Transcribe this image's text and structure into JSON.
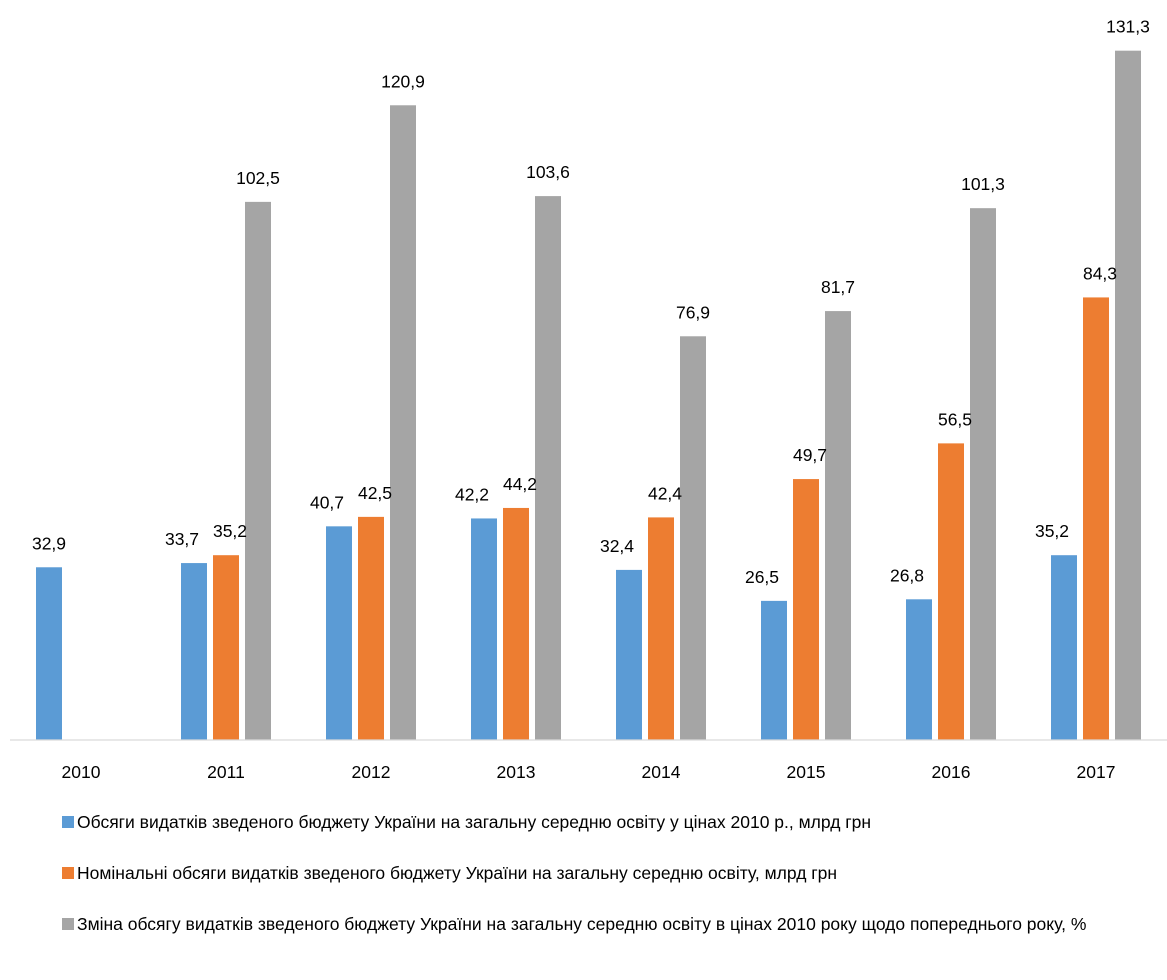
{
  "chart_data": {
    "type": "bar",
    "title": "",
    "xlabel": "",
    "ylabel": "",
    "categories": [
      "2010",
      "2011",
      "2012",
      "2013",
      "2014",
      "2015",
      "2016",
      "2017"
    ],
    "ylim": [
      0,
      135
    ],
    "grid": false,
    "legend_position": "bottom",
    "series": [
      {
        "name": "Обсяги видатків зведеного бюджету України на загальну середню освіту у цінах 2010 р., млрд грн",
        "color": "#5b9bd5",
        "values": [
          32.9,
          33.7,
          40.7,
          42.2,
          32.4,
          26.5,
          26.8,
          35.2
        ],
        "labels": [
          "32,9",
          "33,7",
          "40,7",
          "42,2",
          "32,4",
          "26,5",
          "26,8",
          "35,2"
        ]
      },
      {
        "name": "Номінальні обсяги  видатків зведеного бюджету України на загальну середню освіту, млрд грн",
        "color": "#ed7d31",
        "values": [
          null,
          35.2,
          42.5,
          44.2,
          42.4,
          49.7,
          56.5,
          84.3
        ],
        "labels": [
          null,
          "35,2",
          "42,5",
          "44,2",
          "42,4",
          "49,7",
          "56,5",
          "84,3"
        ]
      },
      {
        "name": "Зміна обсягу видатків зведеного бюджету України на загальну середню освіту в цінах 2010 року щодо попереднього року, %",
        "color": "#a5a5a5",
        "values": [
          null,
          102.5,
          120.9,
          103.6,
          76.9,
          81.7,
          101.3,
          131.3
        ],
        "labels": [
          null,
          "102,5",
          "120,9",
          "103,6",
          "76,9",
          "81,7",
          "101,3",
          "131,3"
        ]
      }
    ]
  }
}
